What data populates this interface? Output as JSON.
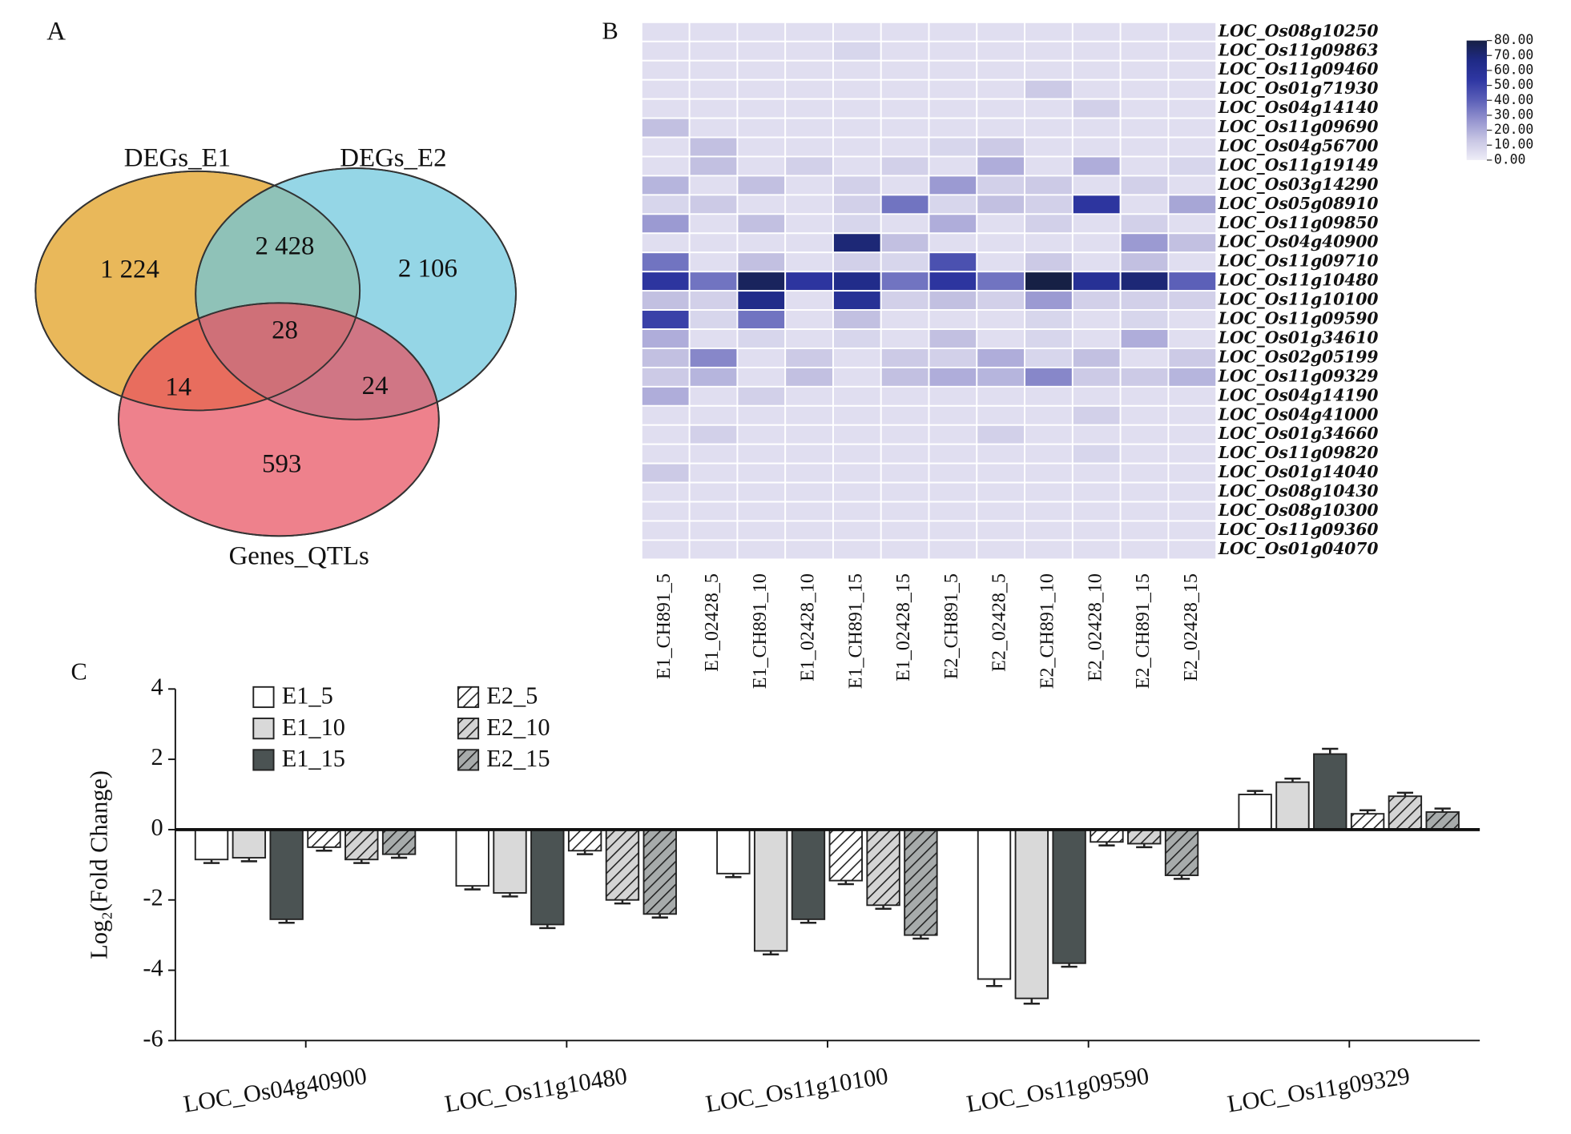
{
  "chart_data": [
    {
      "type": "venn",
      "label": "A",
      "sets": [
        {
          "name": "DEGs_E1",
          "color": "#e9b85a"
        },
        {
          "name": "DEGs_E2",
          "color": "#6cc6dc"
        },
        {
          "name": "Genes_QTLs",
          "color": "#e8505f"
        }
      ],
      "values": [
        1224,
        2428,
        2106,
        28,
        14,
        24,
        593
      ],
      "value_labels": [
        "1 224",
        "2 428",
        "2 106",
        "28",
        "14",
        "24",
        "593"
      ]
    },
    {
      "type": "heatmap",
      "label": "B",
      "x": [
        "E1_CH891_5",
        "E1_02428_5",
        "E1_CH891_10",
        "E1_02428_10",
        "E1_CH891_15",
        "E1_02428_15",
        "E2_CH891_5",
        "E2_02428_5",
        "E2_CH891_10",
        "E2_02428_10",
        "E2_CH891_15",
        "E2_02428_15"
      ],
      "y": [
        "LOC_Os08g10250",
        "LOC_Os11g09863",
        "LOC_Os11g09460",
        "LOC_Os01g71930",
        "LOC_Os04g14140",
        "LOC_Os11g09690",
        "LOC_Os04g56700",
        "LOC_Os11g19149",
        "LOC_Os03g14290",
        "LOC_Os05g08910",
        "LOC_Os11g09850",
        "LOC_Os04g40900",
        "LOC_Os11g09710",
        "LOC_Os11g10480",
        "LOC_Os11g10100",
        "LOC_Os11g09590",
        "LOC_Os01g34610",
        "LOC_Os02g05199",
        "LOC_Os11g09329",
        "LOC_Os04g14190",
        "LOC_Os04g41000",
        "LOC_Os01g34660",
        "LOC_Os11g09820",
        "LOC_Os01g14040",
        "LOC_Os08g10430",
        "LOC_Os08g10300",
        "LOC_Os11g09360",
        "LOC_Os01g04070"
      ],
      "values": [
        [
          5,
          5,
          5,
          5,
          5,
          5,
          5,
          5,
          5,
          5,
          5,
          5
        ],
        [
          5,
          5,
          5,
          5,
          8,
          5,
          5,
          5,
          5,
          5,
          5,
          5
        ],
        [
          5,
          5,
          5,
          5,
          5,
          5,
          5,
          5,
          5,
          5,
          5,
          5
        ],
        [
          5,
          5,
          5,
          5,
          5,
          5,
          5,
          5,
          12,
          5,
          5,
          5
        ],
        [
          5,
          5,
          5,
          5,
          5,
          5,
          5,
          5,
          5,
          10,
          5,
          5
        ],
        [
          15,
          5,
          5,
          5,
          5,
          5,
          5,
          5,
          5,
          5,
          5,
          5
        ],
        [
          5,
          15,
          5,
          5,
          5,
          5,
          8,
          12,
          5,
          5,
          5,
          5
        ],
        [
          5,
          15,
          5,
          10,
          5,
          10,
          5,
          20,
          5,
          20,
          5,
          8
        ],
        [
          18,
          5,
          15,
          5,
          10,
          5,
          25,
          10,
          12,
          5,
          10,
          5
        ],
        [
          8,
          12,
          5,
          5,
          10,
          35,
          8,
          15,
          10,
          55,
          5,
          22
        ],
        [
          25,
          5,
          15,
          5,
          8,
          5,
          20,
          5,
          10,
          5,
          10,
          5
        ],
        [
          5,
          5,
          5,
          5,
          70,
          15,
          5,
          5,
          5,
          5,
          25,
          15
        ],
        [
          35,
          5,
          15,
          5,
          10,
          8,
          45,
          5,
          12,
          5,
          15,
          5
        ],
        [
          55,
          35,
          75,
          55,
          65,
          35,
          55,
          35,
          80,
          60,
          70,
          40
        ],
        [
          15,
          10,
          65,
          5,
          60,
          10,
          15,
          10,
          25,
          10,
          10,
          10
        ],
        [
          50,
          8,
          35,
          5,
          15,
          5,
          5,
          5,
          8,
          5,
          8,
          5
        ],
        [
          20,
          5,
          8,
          5,
          8,
          5,
          15,
          5,
          8,
          5,
          20,
          5
        ],
        [
          15,
          30,
          5,
          12,
          5,
          12,
          10,
          20,
          8,
          15,
          5,
          12
        ],
        [
          12,
          18,
          5,
          15,
          5,
          15,
          20,
          18,
          30,
          12,
          12,
          18
        ],
        [
          20,
          5,
          10,
          5,
          5,
          5,
          5,
          5,
          5,
          5,
          5,
          5
        ],
        [
          5,
          5,
          5,
          5,
          5,
          5,
          5,
          5,
          5,
          10,
          5,
          5
        ],
        [
          5,
          10,
          5,
          5,
          5,
          5,
          5,
          10,
          5,
          5,
          5,
          5
        ],
        [
          5,
          5,
          5,
          5,
          5,
          5,
          5,
          5,
          5,
          8,
          5,
          5
        ],
        [
          12,
          5,
          5,
          5,
          5,
          5,
          5,
          5,
          5,
          5,
          5,
          5
        ],
        [
          5,
          5,
          5,
          5,
          5,
          5,
          5,
          5,
          5,
          5,
          5,
          5
        ],
        [
          5,
          5,
          5,
          5,
          5,
          5,
          5,
          5,
          5,
          5,
          5,
          5
        ],
        [
          5,
          5,
          5,
          5,
          5,
          5,
          5,
          5,
          5,
          5,
          5,
          5
        ],
        [
          5,
          5,
          5,
          5,
          5,
          5,
          5,
          5,
          5,
          5,
          5,
          5
        ]
      ],
      "zlim": [
        0,
        80
      ],
      "zticks": [
        {
          "value": 0,
          "label": "0.00"
        },
        {
          "value": 10,
          "label": "10.00"
        },
        {
          "value": 20,
          "label": "20.00"
        },
        {
          "value": 30,
          "label": "30.00"
        },
        {
          "value": 40,
          "label": "40.00"
        },
        {
          "value": 50,
          "label": "50.00"
        },
        {
          "value": 60,
          "label": "60.00"
        },
        {
          "value": 70,
          "label": "70.00"
        },
        {
          "value": 80,
          "label": "80.00"
        }
      ],
      "colors": [
        "#eeedf7",
        "#c8c6e4",
        "#9594cf",
        "#5c60b8",
        "#2f37a3",
        "#1f2a86",
        "#162045"
      ]
    },
    {
      "type": "bar",
      "label": "C",
      "ylabel": "Log₂(Fold Change)",
      "categories": [
        "LOC_Os04g40900",
        "LOC_Os11g10480",
        "LOC_Os11g10100",
        "LOC_Os11g09590",
        "LOC_Os11g09329"
      ],
      "ylim": [
        -6,
        4
      ],
      "yticks": [
        -6,
        -4,
        -2,
        0,
        2,
        4
      ],
      "series": [
        {
          "name": "E1_5",
          "color": "#ffffff",
          "hatch": false,
          "values": [
            -0.85,
            -1.6,
            -1.25,
            -4.25,
            1.0
          ],
          "errors": [
            0.1,
            0.1,
            0.1,
            0.2,
            0.1
          ]
        },
        {
          "name": "E1_10",
          "color": "#d9d9d9",
          "hatch": false,
          "values": [
            -0.8,
            -1.8,
            -3.45,
            -4.8,
            1.35
          ],
          "errors": [
            0.1,
            0.1,
            0.1,
            0.15,
            0.1
          ]
        },
        {
          "name": "E1_15",
          "color": "#4b5353",
          "hatch": false,
          "values": [
            -2.55,
            -2.7,
            -2.55,
            -3.8,
            2.15
          ],
          "errors": [
            0.1,
            0.1,
            0.1,
            0.1,
            0.15
          ]
        },
        {
          "name": "E2_5",
          "color": "#ffffff",
          "hatch": true,
          "values": [
            -0.5,
            -0.6,
            -1.45,
            -0.35,
            0.45
          ],
          "errors": [
            0.1,
            0.1,
            0.1,
            0.1,
            0.1
          ]
        },
        {
          "name": "E2_10",
          "color": "#d4d4d4",
          "hatch": true,
          "values": [
            -0.85,
            -2.0,
            -2.15,
            -0.4,
            0.95
          ],
          "errors": [
            0.1,
            0.1,
            0.1,
            0.1,
            0.1
          ]
        },
        {
          "name": "E2_15",
          "color": "#a7abab",
          "hatch": true,
          "values": [
            -0.7,
            -2.4,
            -3.0,
            -1.3,
            0.5
          ],
          "errors": [
            0.1,
            0.1,
            0.1,
            0.1,
            0.1
          ]
        }
      ]
    }
  ]
}
